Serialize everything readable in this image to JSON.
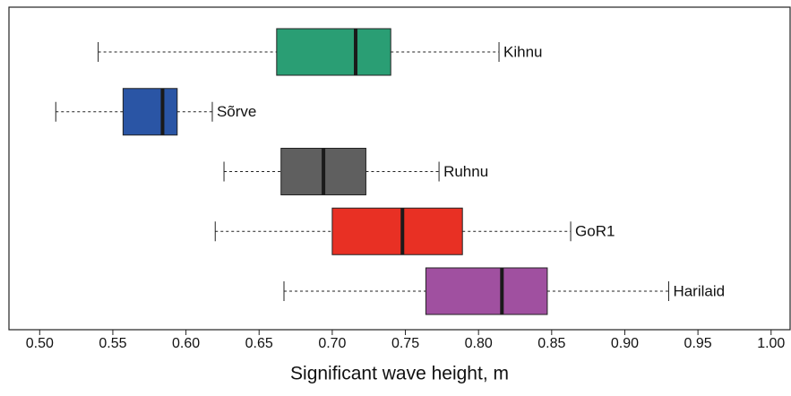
{
  "chart_data": {
    "type": "boxplot",
    "orientation": "horizontal",
    "x_label": "Significant wave height, m",
    "xlim": [
      0.479,
      1.013
    ],
    "xticks": [
      {
        "value": 0.5,
        "label": "0.50"
      },
      {
        "value": 0.55,
        "label": "0.55"
      },
      {
        "value": 0.6,
        "label": "0.60"
      },
      {
        "value": 0.65,
        "label": "0.65"
      },
      {
        "value": 0.7,
        "label": "0.70"
      },
      {
        "value": 0.75,
        "label": "0.75"
      },
      {
        "value": 0.8,
        "label": "0.80"
      },
      {
        "value": 0.85,
        "label": "0.85"
      },
      {
        "value": 0.9,
        "label": "0.90"
      },
      {
        "value": 0.95,
        "label": "0.95"
      },
      {
        "value": 1.0,
        "label": "1.00"
      }
    ],
    "boxes": [
      {
        "name": "Kihnu",
        "color": "#2a9e74",
        "min": 0.54,
        "q1": 0.662,
        "median": 0.716,
        "q3": 0.74,
        "max": 0.814
      },
      {
        "name": "Sõrve",
        "color": "#2a55a5",
        "min": 0.511,
        "q1": 0.557,
        "median": 0.584,
        "q3": 0.594,
        "max": 0.618
      },
      {
        "name": "Ruhnu",
        "color": "#5f5f5f",
        "min": 0.626,
        "q1": 0.665,
        "median": 0.694,
        "q3": 0.723,
        "max": 0.773
      },
      {
        "name": "GoR1",
        "color": "#e83024",
        "min": 0.62,
        "q1": 0.7,
        "median": 0.748,
        "q3": 0.789,
        "max": 0.863
      },
      {
        "name": "Harilaid",
        "color": "#a050a0",
        "min": 0.667,
        "q1": 0.764,
        "median": 0.816,
        "q3": 0.847,
        "max": 0.93
      }
    ]
  }
}
